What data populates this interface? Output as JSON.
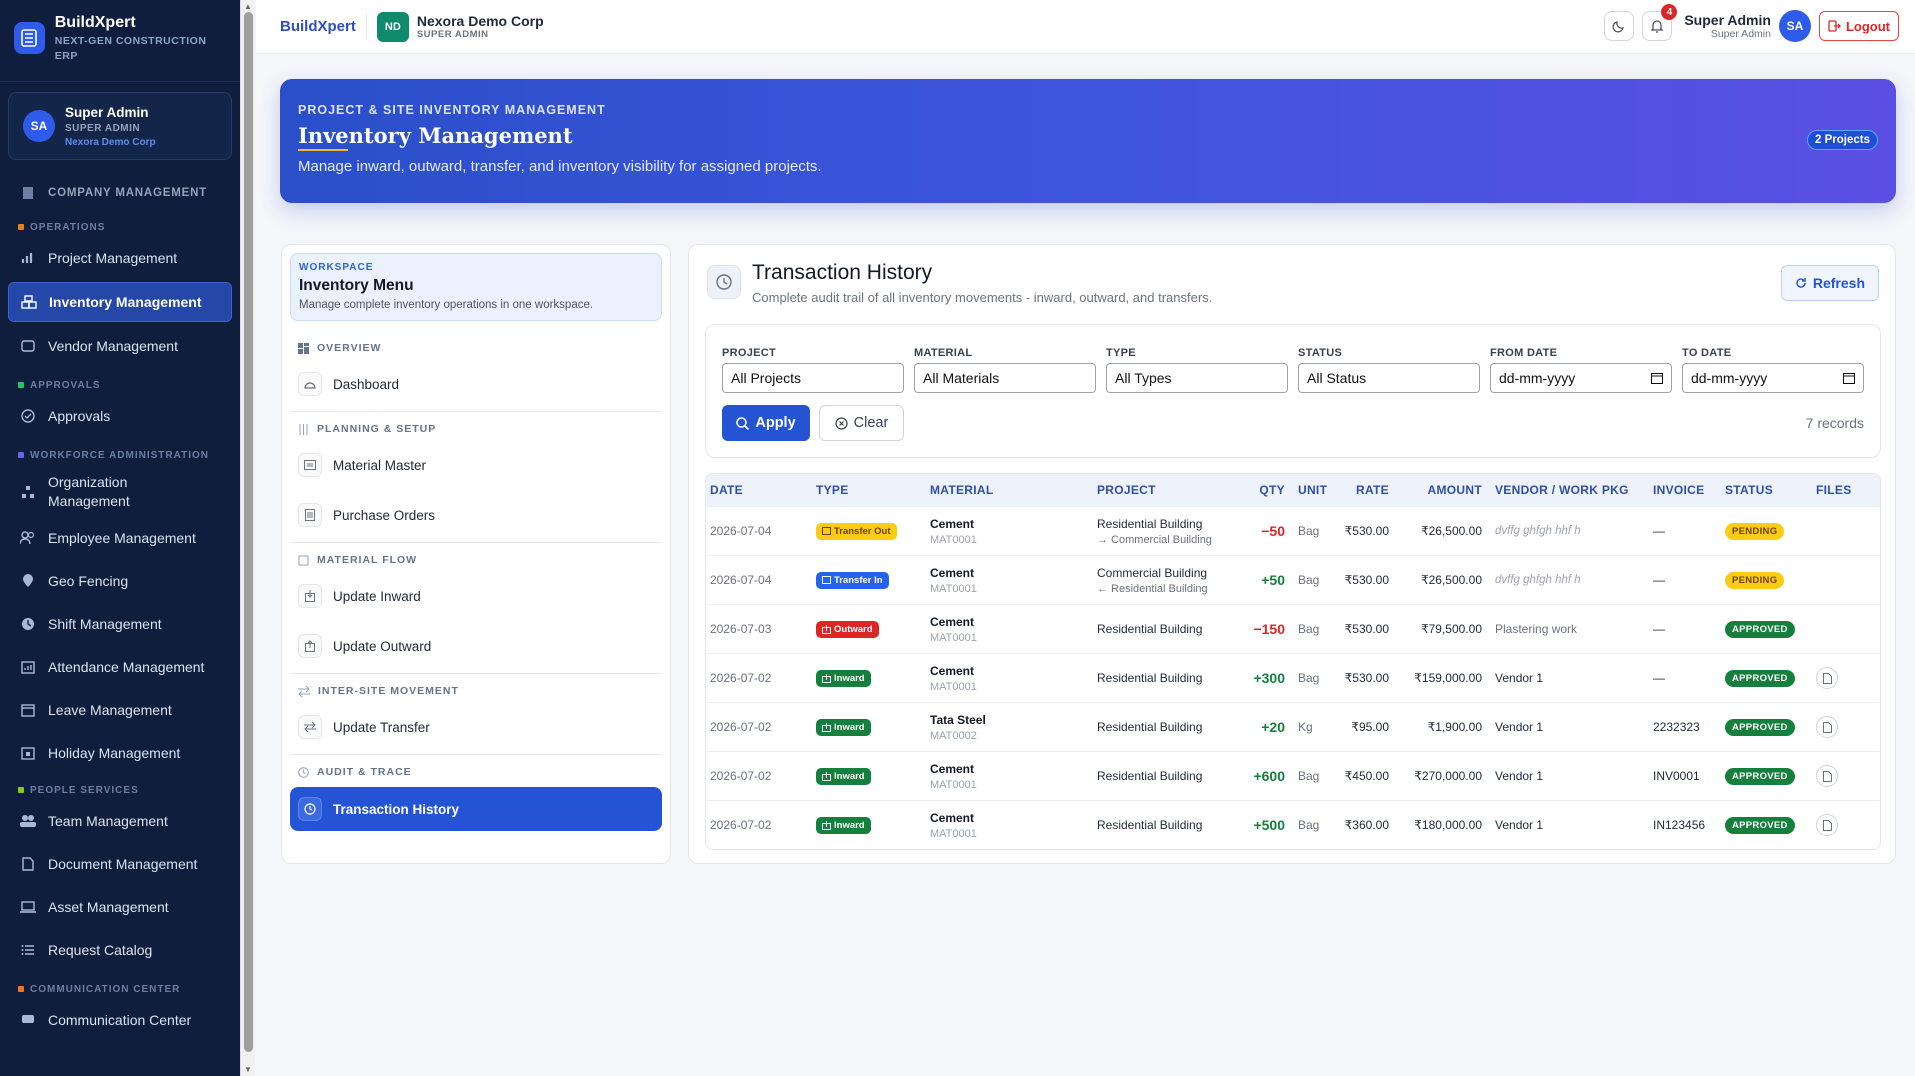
{
  "sidebar": {
    "brand": {
      "name": "BuildXpert",
      "tagline": "NEXT-GEN CONSTRUCTION ERP"
    },
    "user": {
      "initials": "SA",
      "name": "Super Admin",
      "role": "SUPER ADMIN",
      "org": "Nexora Demo Corp"
    },
    "company": "COMPANY MANAGEMENT",
    "sections": {
      "operations": "OPERATIONS",
      "approvals": "APPROVALS",
      "workforce": "WORKFORCE ADMINISTRATION",
      "people": "PEOPLE SERVICES",
      "communication": "COMMUNICATION CENTER"
    },
    "items": {
      "project": "Project Management",
      "inventory": "Inventory Management",
      "vendor": "Vendor Management",
      "approvals": "Approvals",
      "organization": "Organization Management",
      "employee": "Employee Management",
      "geo": "Geo Fencing",
      "shift": "Shift Management",
      "attendance": "Attendance Management",
      "leave": "Leave Management",
      "holiday": "Holiday Management",
      "team": "Team Management",
      "document": "Document Management",
      "asset": "Asset Management",
      "request": "Request Catalog",
      "communication": "Communication Center"
    }
  },
  "topbar": {
    "brand": "BuildXpert",
    "org_initials": "ND",
    "org_name": "Nexora Demo Corp",
    "org_role": "SUPER ADMIN",
    "notifications": "4",
    "user_name": "Super Admin",
    "user_role": "Super Admin",
    "user_initials": "SA",
    "logout": "Logout"
  },
  "hero": {
    "kicker": "PROJECT & SITE INVENTORY MANAGEMENT",
    "title": "Inventory Management",
    "description": "Manage inward, outward, transfer, and inventory visibility for assigned projects.",
    "badge": "2 Projects"
  },
  "workspace": {
    "kicker": "WORKSPACE",
    "title": "Inventory Menu",
    "description": "Manage complete inventory operations in one workspace.",
    "sections": {
      "overview": "OVERVIEW",
      "planning": "PLANNING & SETUP",
      "flow": "MATERIAL FLOW",
      "inter": "INTER-SITE MOVEMENT",
      "audit": "AUDIT & TRACE"
    },
    "items": {
      "dashboard": "Dashboard",
      "material_master": "Material Master",
      "purchase_orders": "Purchase Orders",
      "update_inward": "Update Inward",
      "update_outward": "Update Outward",
      "update_transfer": "Update Transfer",
      "transaction_history": "Transaction History"
    }
  },
  "transactions": {
    "title": "Transaction History",
    "subtitle": "Complete audit trail of all inventory movements - inward, outward, and transfers.",
    "refresh": "Refresh",
    "filters": {
      "project_label": "PROJECT",
      "project_value": "All Projects",
      "material_label": "MATERIAL",
      "material_value": "All Materials",
      "type_label": "TYPE",
      "type_value": "All Types",
      "status_label": "STATUS",
      "status_value": "All Status",
      "from_label": "FROM DATE",
      "from_value": "dd-mm-yyyy",
      "to_label": "TO DATE",
      "to_value": "dd-mm-yyyy"
    },
    "apply": "Apply",
    "clear": "Clear",
    "records": "7 records",
    "columns": {
      "date": "DATE",
      "type": "TYPE",
      "material": "MATERIAL",
      "project": "PROJECT",
      "qty": "QTY",
      "unit": "UNIT",
      "rate": "RATE",
      "amount": "AMOUNT",
      "vendor": "VENDOR / WORK PKG",
      "invoice": "INVOICE",
      "status": "STATUS",
      "files": "FILES"
    },
    "rows": [
      {
        "date": "2026-07-04",
        "type": "Transfer Out",
        "material": "Cement",
        "code": "MAT0001",
        "project": "Residential Building",
        "project_sub": "→ Commercial Building",
        "qty": "−50",
        "unit": "Bag",
        "rate": "₹530.00",
        "amount": "₹26,500.00",
        "vendor": "dvffg ghfgh hhf h",
        "invoice": "—",
        "status": "PENDING"
      },
      {
        "date": "2026-07-04",
        "type": "Transfer In",
        "material": "Cement",
        "code": "MAT0001",
        "project": "Commercial Building",
        "project_sub": "← Residential Building",
        "qty": "+50",
        "unit": "Bag",
        "rate": "₹530.00",
        "amount": "₹26,500.00",
        "vendor": "dvffg ghfgh hhf h",
        "invoice": "—",
        "status": "PENDING"
      },
      {
        "date": "2026-07-03",
        "type": "Outward",
        "material": "Cement",
        "code": "MAT0001",
        "project": "Residential Building",
        "project_sub": "",
        "qty": "−150",
        "unit": "Bag",
        "rate": "₹530.00",
        "amount": "₹79,500.00",
        "vendor": "Plastering work",
        "invoice": "—",
        "status": "APPROVED"
      },
      {
        "date": "2026-07-02",
        "type": "Inward",
        "material": "Cement",
        "code": "MAT0001",
        "project": "Residential Building",
        "project_sub": "",
        "qty": "+300",
        "unit": "Bag",
        "rate": "₹530.00",
        "amount": "₹159,000.00",
        "vendor": "Vendor 1",
        "invoice": "—",
        "status": "APPROVED"
      },
      {
        "date": "2026-07-02",
        "type": "Inward",
        "material": "Tata Steel",
        "code": "MAT0002",
        "project": "Residential Building",
        "project_sub": "",
        "qty": "+20",
        "unit": "Kg",
        "rate": "₹95.00",
        "amount": "₹1,900.00",
        "vendor": "Vendor 1",
        "invoice": "2232323",
        "status": "APPROVED"
      },
      {
        "date": "2026-07-02",
        "type": "Inward",
        "material": "Cement",
        "code": "MAT0001",
        "project": "Residential Building",
        "project_sub": "",
        "qty": "+600",
        "unit": "Bag",
        "rate": "₹450.00",
        "amount": "₹270,000.00",
        "vendor": "Vendor 1",
        "invoice": "INV0001",
        "status": "APPROVED"
      },
      {
        "date": "2026-07-02",
        "type": "Inward",
        "material": "Cement",
        "code": "MAT0001",
        "project": "Residential Building",
        "project_sub": "",
        "qty": "+500",
        "unit": "Bag",
        "rate": "₹360.00",
        "amount": "₹180,000.00",
        "vendor": "Vendor 1",
        "invoice": "IN123456",
        "status": "APPROVED"
      }
    ]
  }
}
